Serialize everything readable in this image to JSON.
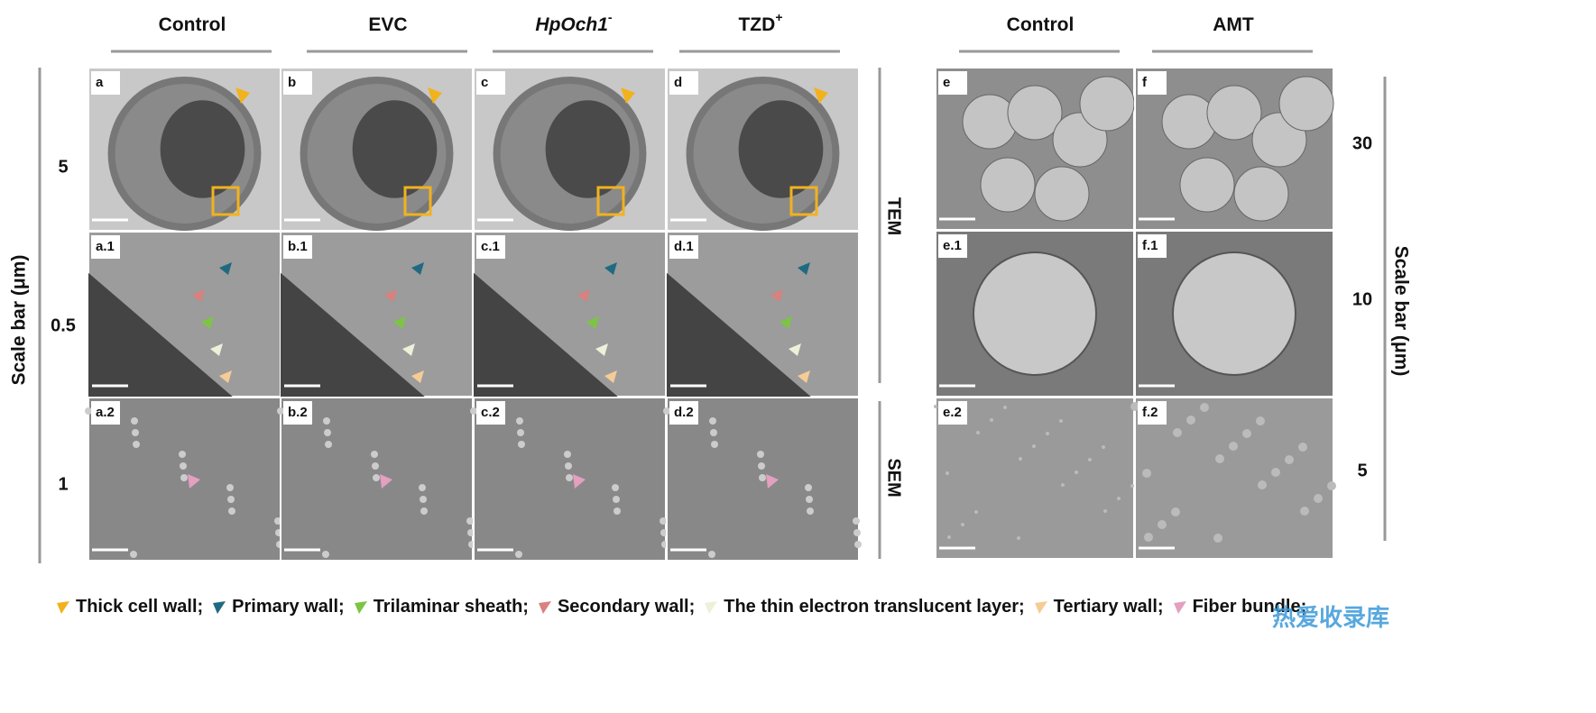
{
  "left_headers": [
    {
      "text": "Control"
    },
    {
      "text": "EVC"
    },
    {
      "text": "HpOch1",
      "sup": "-",
      "italic": true
    },
    {
      "text": "TZD",
      "sup": "+"
    }
  ],
  "right_headers": [
    {
      "text": "Control"
    },
    {
      "text": "AMT"
    }
  ],
  "left_scale": {
    "title": "Scale bar (μm)",
    "values": [
      "5",
      "0.5",
      "1"
    ]
  },
  "right_scale": {
    "title": "Scale bar (μm)",
    "values": [
      "30",
      "10",
      "5"
    ]
  },
  "methods": [
    "TEM",
    "SEM"
  ],
  "panels_left": [
    [
      "a",
      "b",
      "c",
      "d"
    ],
    [
      "a.1",
      "b.1",
      "c.1",
      "d.1"
    ],
    [
      "a.2",
      "b.2",
      "c.2",
      "d.2"
    ]
  ],
  "panels_right": [
    [
      "e",
      "f"
    ],
    [
      "e.1",
      "f.1"
    ],
    [
      "e.2",
      "f.2"
    ]
  ],
  "legend": [
    {
      "color": "#f2b21d",
      "label": "Thick cell wall;"
    },
    {
      "color": "#1f6a80",
      "label": "Primary wall;"
    },
    {
      "color": "#7dc444",
      "label": "Trilaminar sheath;"
    },
    {
      "color": "#d98080",
      "label": "Secondary wall;"
    },
    {
      "color": "#eef0d8",
      "label": "The thin electron translucent layer;"
    },
    {
      "color": "#f5cc96",
      "label": "Tertiary wall;"
    },
    {
      "color": "#e3a0c0",
      "label": "Fiber bundle;"
    }
  ],
  "watermark": "热爱收录库"
}
